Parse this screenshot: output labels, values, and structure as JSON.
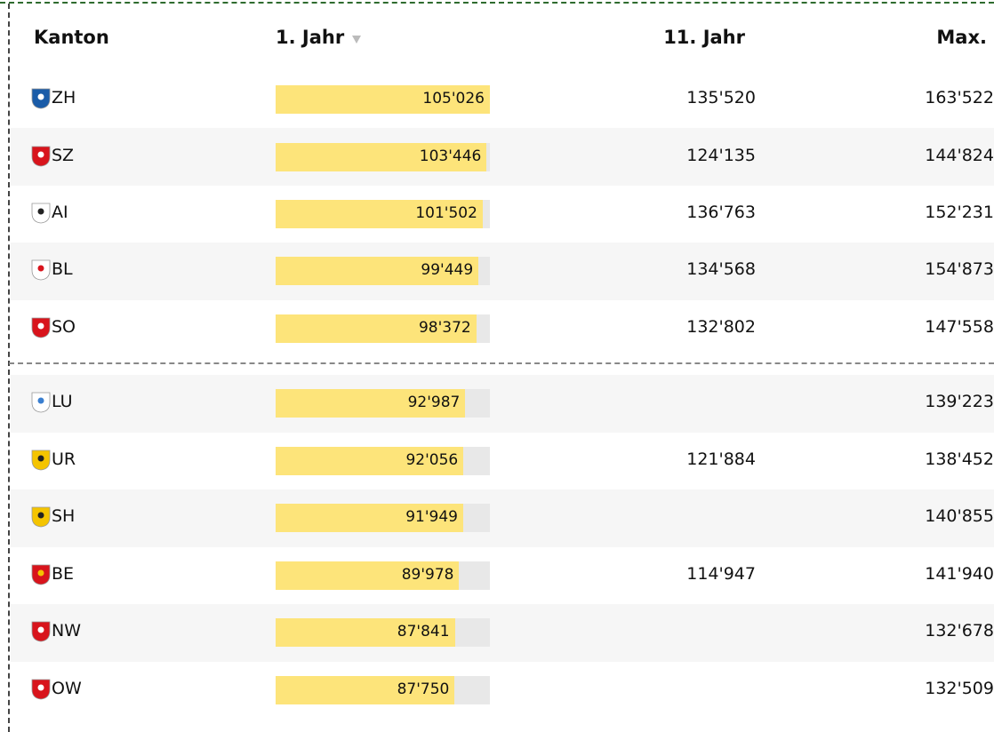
{
  "table": {
    "columns": [
      "Kanton",
      "1. Jahr",
      "11. Jahr",
      "Max."
    ],
    "groups": [
      [
        {
          "canton": "ZH",
          "first_year": 105026,
          "first_year_label": "105'026",
          "eleventh_year": "135'520",
          "max": "163'522"
        },
        {
          "canton": "SZ",
          "first_year": 103446,
          "first_year_label": "103'446",
          "eleventh_year": "124'135",
          "max": "144'824"
        },
        {
          "canton": "AI",
          "first_year": 101502,
          "first_year_label": "101'502",
          "eleventh_year": "136'763",
          "max": "152'231"
        },
        {
          "canton": "BL",
          "first_year": 99449,
          "first_year_label": "99'449",
          "eleventh_year": "134'568",
          "max": "154'873"
        },
        {
          "canton": "SO",
          "first_year": 98372,
          "first_year_label": "98'372",
          "eleventh_year": "132'802",
          "max": "147'558"
        }
      ],
      [
        {
          "canton": "LU",
          "first_year": 92987,
          "first_year_label": "92'987",
          "eleventh_year": null,
          "max": "139'223"
        },
        {
          "canton": "UR",
          "first_year": 92056,
          "first_year_label": "92'056",
          "eleventh_year": "121'884",
          "max": "138'452"
        },
        {
          "canton": "SH",
          "first_year": 91949,
          "first_year_label": "91'949",
          "eleventh_year": null,
          "max": "140'855"
        },
        {
          "canton": "BE",
          "first_year": 89978,
          "first_year_label": "89'978",
          "eleventh_year": "114'947",
          "max": "141'940"
        },
        {
          "canton": "NW",
          "first_year": 87841,
          "first_year_label": "87'841",
          "eleventh_year": null,
          "max": "132'678"
        },
        {
          "canton": "OW",
          "first_year": 87750,
          "first_year_label": "87'750",
          "eleventh_year": null,
          "max": "132'509"
        }
      ]
    ]
  }
}
